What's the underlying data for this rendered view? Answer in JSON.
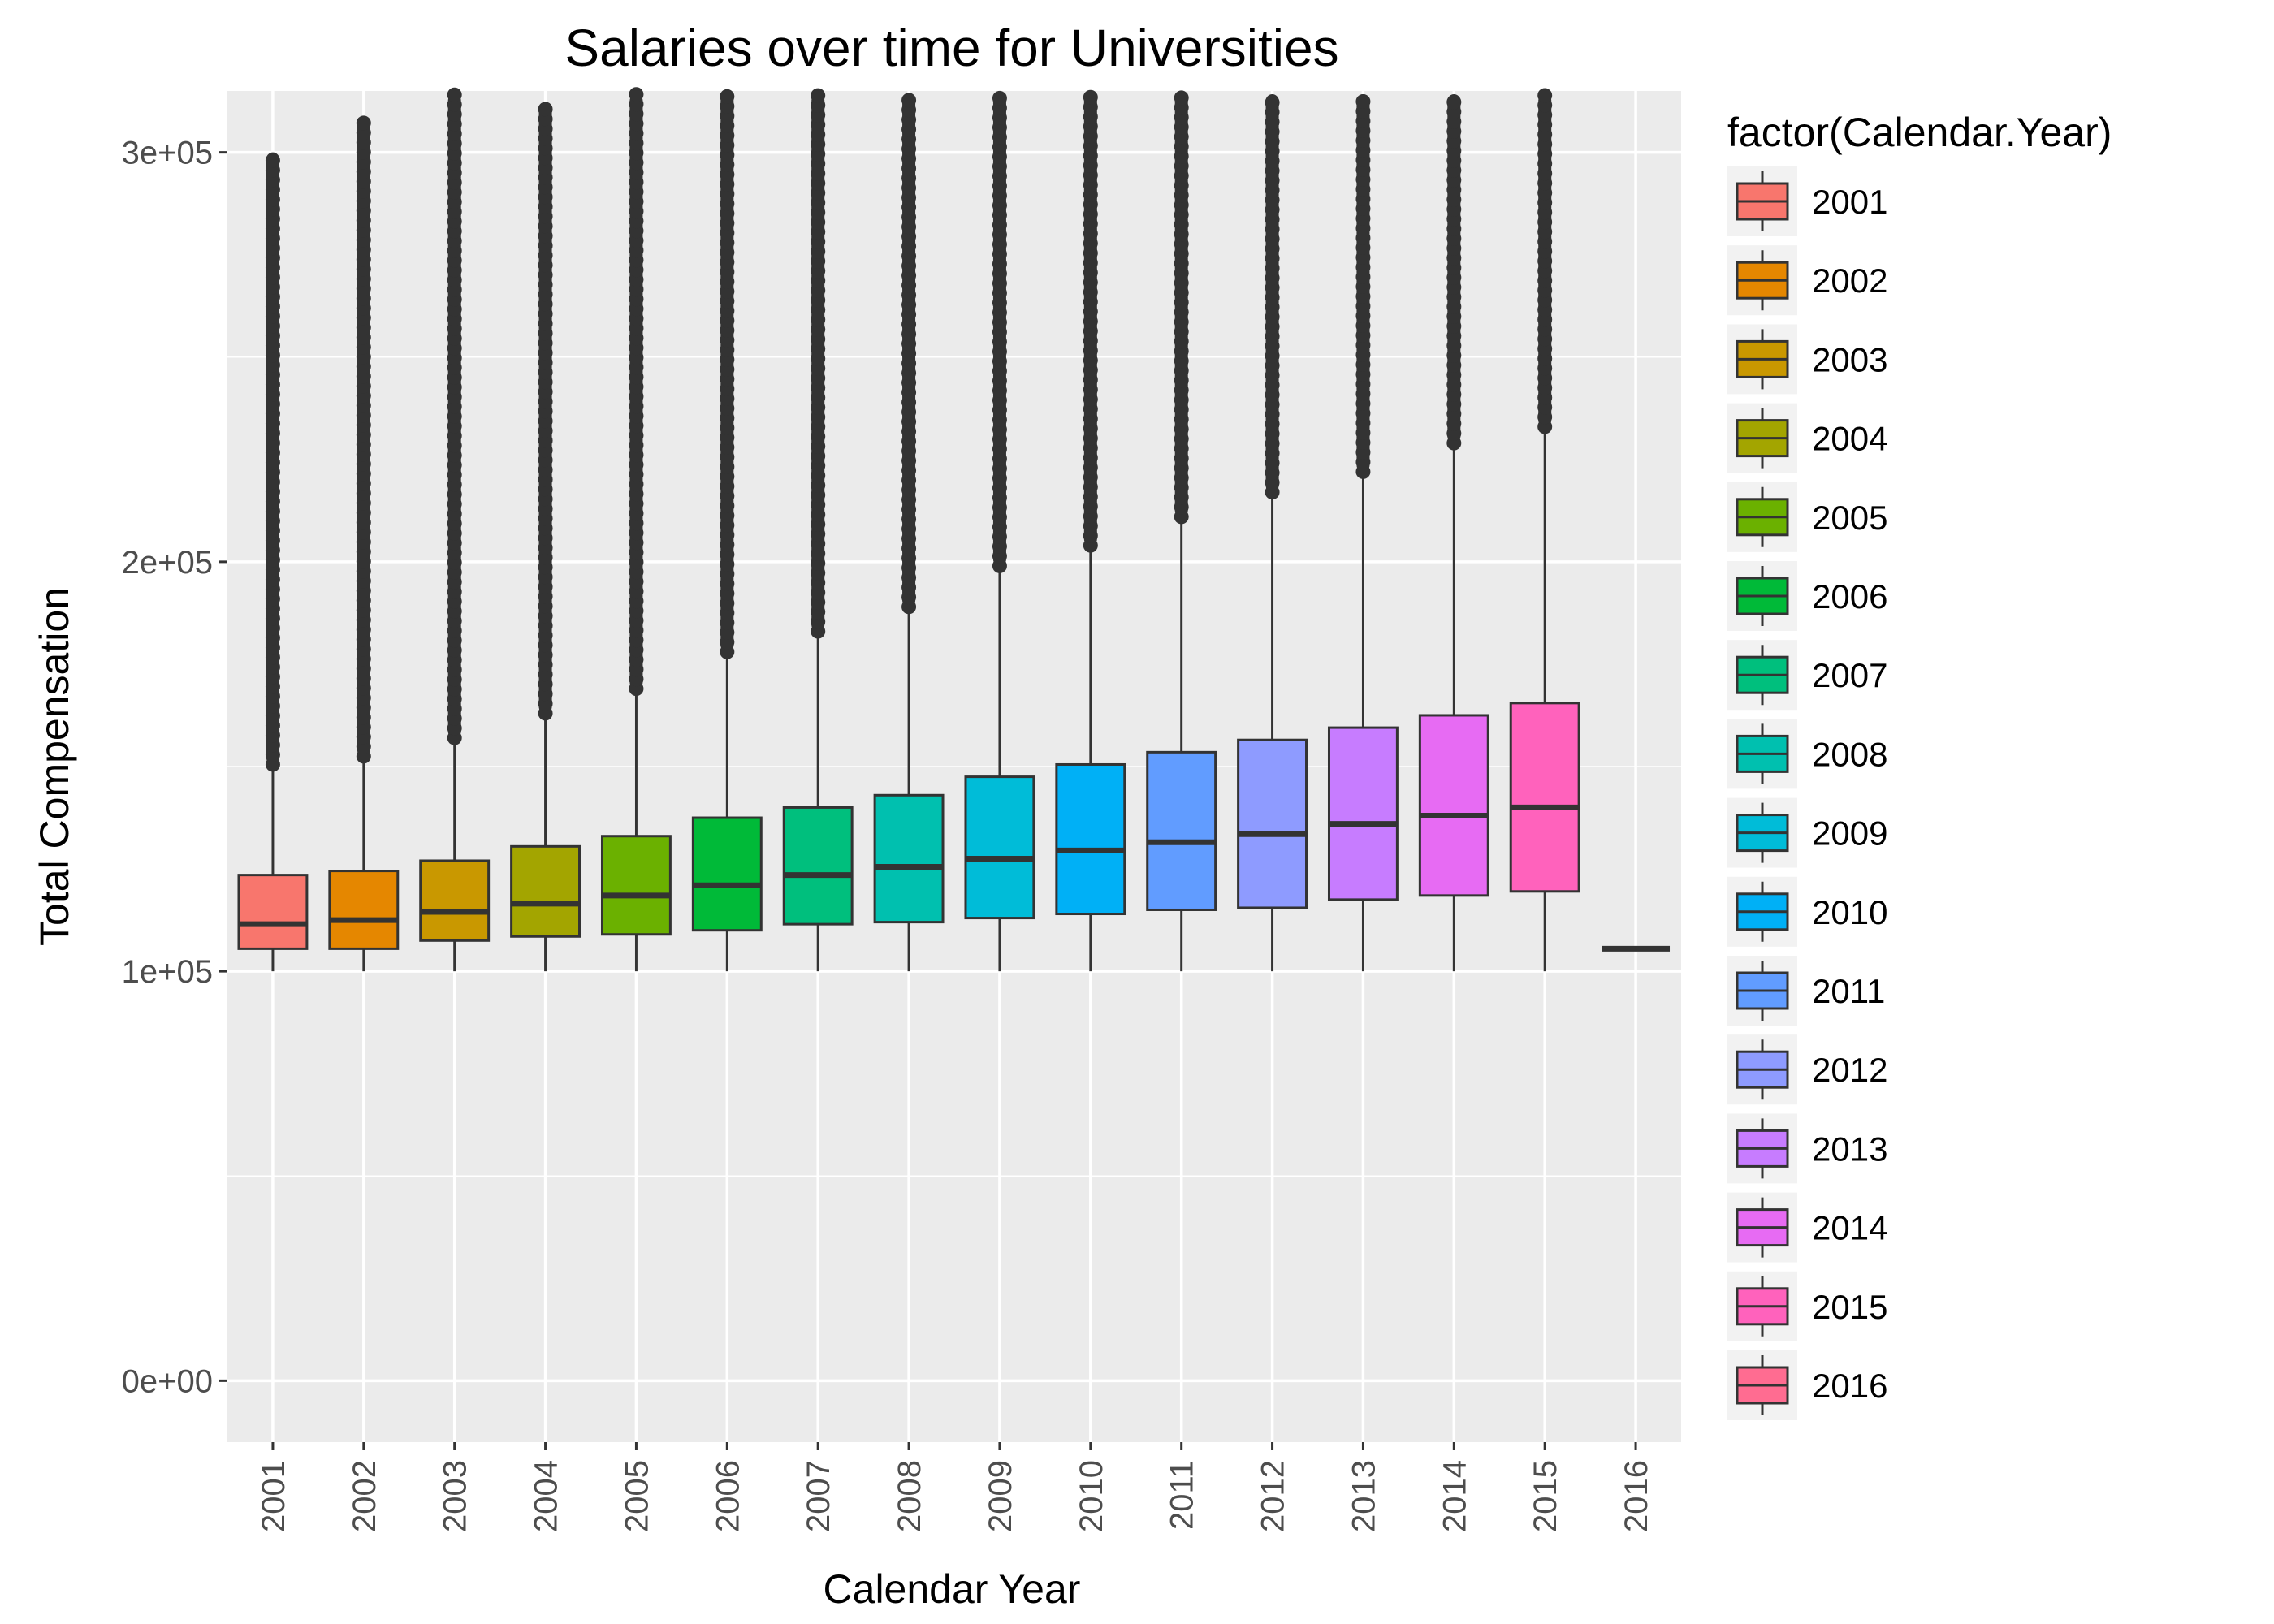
{
  "chart_data": {
    "type": "boxplot",
    "title": "Salaries over time for Universities",
    "xlabel": "Calendar Year",
    "ylabel": "Total Compensation",
    "legend_title": "factor(Calendar.Year)",
    "legend_position": "right",
    "grid": true,
    "ylim": [
      -15000,
      315000
    ],
    "yticks": [
      {
        "value": 0,
        "label": "0e+00"
      },
      {
        "value": 100000,
        "label": "1e+05"
      },
      {
        "value": 200000,
        "label": "2e+05"
      },
      {
        "value": 300000,
        "label": "3e+05"
      }
    ],
    "categories": [
      "2001",
      "2002",
      "2003",
      "2004",
      "2005",
      "2006",
      "2007",
      "2008",
      "2009",
      "2010",
      "2011",
      "2012",
      "2013",
      "2014",
      "2015",
      "2016"
    ],
    "colors": [
      "#F8766D",
      "#E58700",
      "#C99800",
      "#A3A500",
      "#6BB100",
      "#00BA38",
      "#00BF7D",
      "#00C0AF",
      "#00BCD8",
      "#00B0F6",
      "#619CFF",
      "#8E9BFF",
      "#C77CFF",
      "#E76BF3",
      "#FF62BC",
      "#FF6C91"
    ],
    "boxes": [
      {
        "year": "2001",
        "min": 100000,
        "q1": 105500,
        "median": 111500,
        "q3": 123500,
        "whisker_high": 150000,
        "outliers_from": 150500,
        "outliers_to": 300000
      },
      {
        "year": "2002",
        "min": 100000,
        "q1": 105500,
        "median": 112500,
        "q3": 124500,
        "whisker_high": 152000,
        "outliers_from": 152500,
        "outliers_to": 308000
      },
      {
        "year": "2003",
        "min": 100000,
        "q1": 107500,
        "median": 114500,
        "q3": 127000,
        "whisker_high": 156000,
        "outliers_from": 157000,
        "outliers_to": 315000
      },
      {
        "year": "2004",
        "min": 100000,
        "q1": 108500,
        "median": 116500,
        "q3": 130500,
        "whisker_high": 162000,
        "outliers_from": 163000,
        "outliers_to": 312000
      },
      {
        "year": "2005",
        "min": 100000,
        "q1": 109000,
        "median": 118500,
        "q3": 133000,
        "whisker_high": 168000,
        "outliers_from": 169000,
        "outliers_to": 315000
      },
      {
        "year": "2006",
        "min": 100000,
        "q1": 110000,
        "median": 121000,
        "q3": 137500,
        "whisker_high": 177000,
        "outliers_from": 178000,
        "outliers_to": 315000
      },
      {
        "year": "2007",
        "min": 100000,
        "q1": 111500,
        "median": 123500,
        "q3": 140000,
        "whisker_high": 182000,
        "outliers_from": 183000,
        "outliers_to": 315000
      },
      {
        "year": "2008",
        "min": 100000,
        "q1": 112000,
        "median": 125500,
        "q3": 143000,
        "whisker_high": 188000,
        "outliers_from": 189000,
        "outliers_to": 315000
      },
      {
        "year": "2009",
        "min": 100000,
        "q1": 113000,
        "median": 127500,
        "q3": 147500,
        "whisker_high": 198000,
        "outliers_from": 199000,
        "outliers_to": 315000
      },
      {
        "year": "2010",
        "min": 100000,
        "q1": 114000,
        "median": 129500,
        "q3": 150500,
        "whisker_high": 203000,
        "outliers_from": 204000,
        "outliers_to": 315000
      },
      {
        "year": "2011",
        "min": 100000,
        "q1": 115000,
        "median": 131500,
        "q3": 153500,
        "whisker_high": 210000,
        "outliers_from": 211000,
        "outliers_to": 315000
      },
      {
        "year": "2012",
        "min": 100000,
        "q1": 115500,
        "median": 133500,
        "q3": 156500,
        "whisker_high": 216000,
        "outliers_from": 217000,
        "outliers_to": 315000
      },
      {
        "year": "2013",
        "min": 100000,
        "q1": 117500,
        "median": 136000,
        "q3": 159500,
        "whisker_high": 221000,
        "outliers_from": 222000,
        "outliers_to": 315000
      },
      {
        "year": "2014",
        "min": 100000,
        "q1": 118500,
        "median": 138000,
        "q3": 162500,
        "whisker_high": 228000,
        "outliers_from": 229000,
        "outliers_to": 315000
      },
      {
        "year": "2015",
        "min": 100000,
        "q1": 119500,
        "median": 140000,
        "q3": 165500,
        "whisker_high": 232000,
        "outliers_from": 233000,
        "outliers_to": 315000
      },
      {
        "year": "2016",
        "min": 105500,
        "q1": 105500,
        "median": 105500,
        "q3": 105500,
        "whisker_high": 105500,
        "outliers_from": null,
        "outliers_to": null
      }
    ]
  }
}
